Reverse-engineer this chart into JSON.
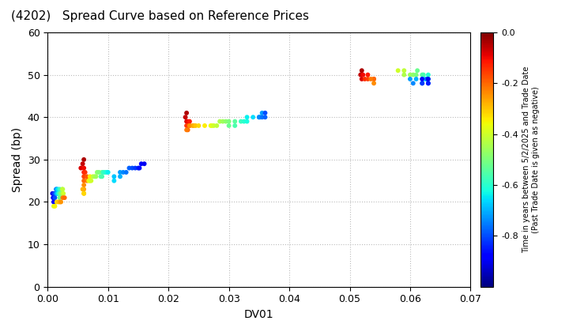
{
  "title": "(4202)   Spread Curve based on Reference Prices",
  "xlabel": "DV01",
  "ylabel": "Spread (bp)",
  "xlim": [
    0.0,
    0.07
  ],
  "ylim": [
    0,
    60
  ],
  "xticks": [
    0.0,
    0.01,
    0.02,
    0.03,
    0.04,
    0.05,
    0.06,
    0.07
  ],
  "yticks": [
    0,
    10,
    20,
    30,
    40,
    50,
    60
  ],
  "colorbar_label_line1": "Time in years between 5/2/2025 and Trade Date",
  "colorbar_label_line2": "(Past Trade Date is given as negative)",
  "colorbar_vmin": -1.0,
  "colorbar_vmax": 0.0,
  "colorbar_ticks": [
    0.0,
    -0.2,
    -0.4,
    -0.6,
    -0.8
  ],
  "background_color": "#ffffff",
  "grid_color": "#bbbbbb",
  "point_size": 18,
  "clusters": [
    {
      "points": [
        [
          0.0008,
          22,
          -0.92
        ],
        [
          0.0009,
          21,
          -0.9
        ],
        [
          0.001,
          20,
          -0.88
        ],
        [
          0.001,
          21,
          -0.86
        ],
        [
          0.001,
          22,
          -0.84
        ],
        [
          0.0012,
          22,
          -0.82
        ],
        [
          0.0012,
          21,
          -0.8
        ],
        [
          0.0013,
          22,
          -0.78
        ],
        [
          0.0014,
          23,
          -0.75
        ],
        [
          0.0015,
          23,
          -0.72
        ],
        [
          0.0015,
          22,
          -0.7
        ],
        [
          0.0016,
          22,
          -0.68
        ],
        [
          0.0017,
          23,
          -0.65
        ],
        [
          0.0018,
          22,
          -0.62
        ],
        [
          0.0019,
          22,
          -0.6
        ],
        [
          0.002,
          23,
          -0.58
        ],
        [
          0.002,
          22,
          -0.55
        ],
        [
          0.002,
          21,
          -0.52
        ],
        [
          0.0022,
          22,
          -0.5
        ],
        [
          0.0023,
          22,
          -0.48
        ],
        [
          0.0024,
          23,
          -0.45
        ],
        [
          0.0025,
          23,
          -0.42
        ],
        [
          0.0026,
          22,
          -0.4
        ],
        [
          0.001,
          19,
          -0.38
        ],
        [
          0.0012,
          19,
          -0.35
        ],
        [
          0.0015,
          20,
          -0.32
        ],
        [
          0.0018,
          20,
          -0.3
        ],
        [
          0.002,
          20,
          -0.28
        ],
        [
          0.0022,
          20,
          -0.25
        ],
        [
          0.0025,
          21,
          -0.22
        ],
        [
          0.0028,
          21,
          -0.2
        ]
      ]
    },
    {
      "points": [
        [
          0.006,
          30,
          -0.04
        ],
        [
          0.0058,
          29,
          -0.06
        ],
        [
          0.0055,
          28,
          -0.08
        ],
        [
          0.006,
          28,
          -0.1
        ],
        [
          0.006,
          27,
          -0.12
        ],
        [
          0.0062,
          27,
          -0.14
        ],
        [
          0.006,
          26,
          -0.16
        ],
        [
          0.0065,
          26,
          -0.18
        ],
        [
          0.006,
          25,
          -0.2
        ],
        [
          0.0065,
          25,
          -0.22
        ],
        [
          0.006,
          24,
          -0.24
        ],
        [
          0.006,
          23,
          -0.26
        ],
        [
          0.0058,
          23,
          -0.28
        ],
        [
          0.006,
          22,
          -0.3
        ],
        [
          0.006,
          22,
          -0.32
        ],
        [
          0.007,
          26,
          -0.34
        ],
        [
          0.0068,
          25,
          -0.36
        ],
        [
          0.007,
          25,
          -0.38
        ],
        [
          0.0072,
          25,
          -0.4
        ],
        [
          0.0075,
          26,
          -0.42
        ],
        [
          0.0078,
          26,
          -0.44
        ],
        [
          0.008,
          26,
          -0.46
        ],
        [
          0.0082,
          27,
          -0.48
        ],
        [
          0.0085,
          27,
          -0.5
        ],
        [
          0.009,
          27,
          -0.52
        ],
        [
          0.0088,
          26,
          -0.54
        ],
        [
          0.009,
          26,
          -0.56
        ],
        [
          0.0092,
          27,
          -0.58
        ],
        [
          0.0095,
          27,
          -0.6
        ],
        [
          0.0098,
          27,
          -0.62
        ],
        [
          0.01,
          27,
          -0.64
        ]
      ]
    },
    {
      "points": [
        [
          0.011,
          25,
          -0.66
        ],
        [
          0.011,
          26,
          -0.68
        ],
        [
          0.012,
          26,
          -0.7
        ],
        [
          0.012,
          27,
          -0.72
        ],
        [
          0.0125,
          27,
          -0.74
        ],
        [
          0.013,
          27,
          -0.76
        ],
        [
          0.0135,
          28,
          -0.78
        ],
        [
          0.014,
          28,
          -0.8
        ],
        [
          0.0145,
          28,
          -0.82
        ],
        [
          0.015,
          28,
          -0.84
        ],
        [
          0.0152,
          28,
          -0.86
        ],
        [
          0.0155,
          29,
          -0.88
        ],
        [
          0.016,
          29,
          -0.9
        ]
      ]
    },
    {
      "points": [
        [
          0.023,
          41,
          -0.04
        ],
        [
          0.0228,
          40,
          -0.06
        ],
        [
          0.023,
          39,
          -0.08
        ],
        [
          0.0232,
          39,
          -0.1
        ],
        [
          0.0235,
          39,
          -0.12
        ],
        [
          0.023,
          38,
          -0.14
        ],
        [
          0.0232,
          38,
          -0.16
        ],
        [
          0.0235,
          38,
          -0.18
        ],
        [
          0.0232,
          37,
          -0.2
        ],
        [
          0.023,
          37,
          -0.22
        ],
        [
          0.0235,
          38,
          -0.24
        ],
        [
          0.024,
          38,
          -0.26
        ],
        [
          0.0242,
          38,
          -0.28
        ],
        [
          0.0245,
          38,
          -0.3
        ],
        [
          0.025,
          38,
          -0.32
        ],
        [
          0.026,
          38,
          -0.34
        ],
        [
          0.027,
          38,
          -0.36
        ],
        [
          0.0272,
          38,
          -0.38
        ],
        [
          0.0275,
          38,
          -0.4
        ],
        [
          0.028,
          38,
          -0.42
        ],
        [
          0.0285,
          39,
          -0.44
        ],
        [
          0.029,
          39,
          -0.46
        ],
        [
          0.0295,
          39,
          -0.48
        ],
        [
          0.03,
          39,
          -0.5
        ],
        [
          0.03,
          38,
          -0.52
        ],
        [
          0.031,
          39,
          -0.54
        ],
        [
          0.031,
          38,
          -0.56
        ],
        [
          0.032,
          39,
          -0.58
        ],
        [
          0.0325,
          39,
          -0.6
        ],
        [
          0.033,
          39,
          -0.62
        ],
        [
          0.033,
          40,
          -0.64
        ],
        [
          0.034,
          40,
          -0.66
        ],
        [
          0.035,
          40,
          -0.68
        ],
        [
          0.0352,
          40,
          -0.7
        ],
        [
          0.0355,
          41,
          -0.72
        ],
        [
          0.035,
          40,
          -0.74
        ],
        [
          0.0355,
          40,
          -0.76
        ],
        [
          0.036,
          40,
          -0.78
        ],
        [
          0.036,
          41,
          -0.8
        ]
      ]
    },
    {
      "points": [
        [
          0.052,
          51,
          -0.04
        ],
        [
          0.0518,
          50,
          -0.06
        ],
        [
          0.052,
          49,
          -0.08
        ],
        [
          0.0522,
          50,
          -0.1
        ],
        [
          0.053,
          50,
          -0.12
        ],
        [
          0.0525,
          49,
          -0.14
        ],
        [
          0.053,
          49,
          -0.16
        ],
        [
          0.054,
          49,
          -0.18
        ],
        [
          0.054,
          49,
          -0.2
        ],
        [
          0.0535,
          49,
          -0.22
        ],
        [
          0.054,
          48,
          -0.24
        ]
      ]
    },
    {
      "points": [
        [
          0.058,
          51,
          -0.4
        ],
        [
          0.059,
          51,
          -0.42
        ],
        [
          0.059,
          50,
          -0.44
        ],
        [
          0.06,
          50,
          -0.46
        ],
        [
          0.0605,
          50,
          -0.48
        ],
        [
          0.061,
          50,
          -0.5
        ],
        [
          0.0612,
          51,
          -0.52
        ],
        [
          0.062,
          50,
          -0.54
        ],
        [
          0.0622,
          50,
          -0.56
        ],
        [
          0.0625,
          49,
          -0.58
        ],
        [
          0.063,
          50,
          -0.6
        ],
        [
          0.0628,
          49,
          -0.62
        ],
        [
          0.063,
          49,
          -0.64
        ],
        [
          0.0625,
          49,
          -0.66
        ],
        [
          0.062,
          49,
          -0.68
        ],
        [
          0.061,
          49,
          -0.7
        ],
        [
          0.06,
          49,
          -0.72
        ],
        [
          0.0605,
          48,
          -0.74
        ],
        [
          0.062,
          48,
          -0.76
        ],
        [
          0.063,
          48,
          -0.78
        ],
        [
          0.0628,
          49,
          -0.8
        ],
        [
          0.062,
          48,
          -0.82
        ],
        [
          0.063,
          48,
          -0.85
        ],
        [
          0.062,
          49,
          -0.88
        ],
        [
          0.063,
          49,
          -0.9
        ]
      ]
    }
  ]
}
